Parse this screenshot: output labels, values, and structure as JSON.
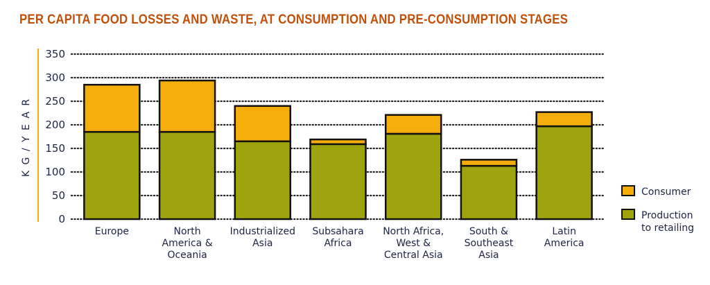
{
  "chart_data": {
    "type": "bar",
    "stacked": true,
    "title": "PER CAPITA FOOD LOSSES AND WASTE, AT CONSUMPTION AND PRE-CONSUMPTION STAGES",
    "xlabel": "",
    "ylabel": "KG / YEAR",
    "ylim": [
      0,
      350
    ],
    "yticks": [
      0,
      50,
      100,
      150,
      200,
      250,
      300,
      350
    ],
    "grid": true,
    "legend_position": "bottom-right",
    "categories": [
      [
        "Europe"
      ],
      [
        "North",
        "America &",
        "Oceania"
      ],
      [
        "Industrialized",
        "Asia"
      ],
      [
        "Subsahara",
        "Africa"
      ],
      [
        "North Africa,",
        "West &",
        "Central Asia"
      ],
      [
        "South &",
        "Southeast",
        "Asia"
      ],
      [
        "Latin",
        "America"
      ]
    ],
    "series": [
      {
        "name": "Production to retailing",
        "legend_lines": [
          "Production",
          "to retailing"
        ],
        "color": "#9ea40d",
        "values": [
          185,
          185,
          165,
          159,
          181,
          113,
          197
        ]
      },
      {
        "name": "Consumer",
        "legend_lines": [
          "Consumer"
        ],
        "color": "#f5ad0c",
        "values": [
          100,
          109,
          75,
          10,
          40,
          13,
          30
        ]
      }
    ]
  },
  "colors": {
    "title": "#c0500a",
    "axis_line": "#f5ad0c",
    "outline": "#111111",
    "text": "#1d2340"
  }
}
